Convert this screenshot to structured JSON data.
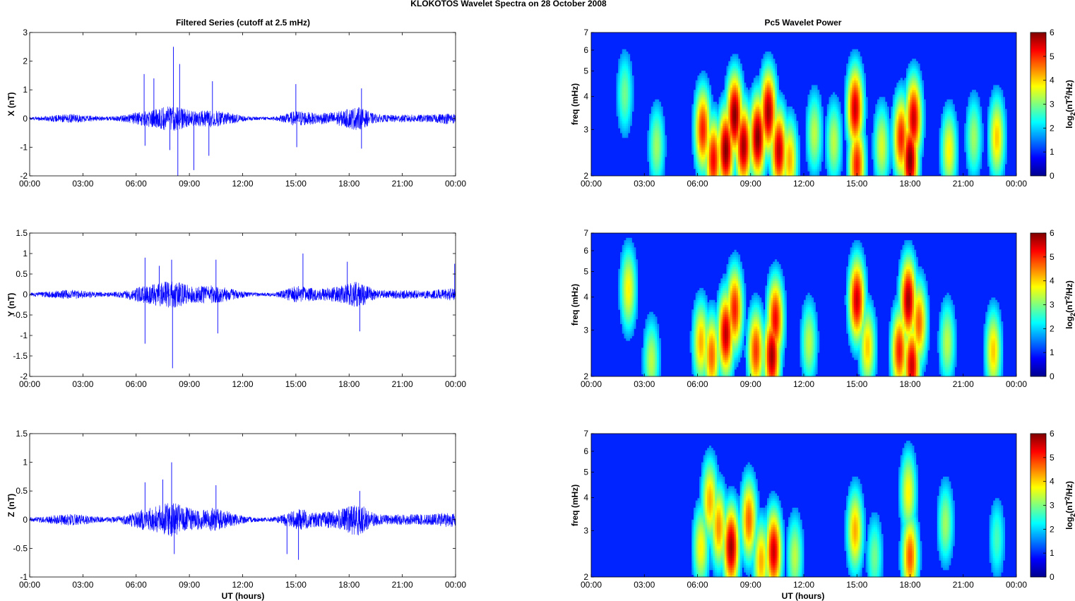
{
  "figure": {
    "suptitle": "KLOKOTOS Wavelet Spectra on 28 October   2008",
    "left_column_title": "Filtered Series (cutoff at 2.5 mHz)",
    "right_column_title": "Pc5 Wavelet Power",
    "xlabel": "UT (hours)"
  },
  "chart_data": [
    {
      "type": "line",
      "name": "X component filtered series",
      "ylabel": "X (nT)",
      "xlim": [
        0,
        24
      ],
      "ylim": [
        -2,
        3
      ],
      "yticks": [
        -2,
        -1,
        0,
        1,
        2,
        3
      ],
      "xtick_labels": [
        "00:00",
        "03:00",
        "06:00",
        "09:00",
        "12:00",
        "15:00",
        "18:00",
        "21:00",
        "00:00"
      ],
      "color": "#0000ff",
      "spikes": [
        {
          "x": 6.45,
          "y": 1.55
        },
        {
          "x": 6.5,
          "y": -0.95
        },
        {
          "x": 7.0,
          "y": 1.4
        },
        {
          "x": 7.9,
          "y": -1.1
        },
        {
          "x": 8.1,
          "y": 2.5
        },
        {
          "x": 8.35,
          "y": -2.0
        },
        {
          "x": 8.45,
          "y": 1.9
        },
        {
          "x": 9.25,
          "y": -1.8
        },
        {
          "x": 10.1,
          "y": -1.3
        },
        {
          "x": 10.3,
          "y": 1.3
        },
        {
          "x": 15.0,
          "y": 1.2
        },
        {
          "x": 15.05,
          "y": -1.0
        },
        {
          "x": 18.7,
          "y": 1.05
        },
        {
          "x": 18.7,
          "y": -1.05
        }
      ]
    },
    {
      "type": "line",
      "name": "Y component filtered series",
      "ylabel": "Y (nT)",
      "xlim": [
        0,
        24
      ],
      "ylim": [
        -2,
        1.5
      ],
      "yticks": [
        -2,
        -1.5,
        -1,
        -0.5,
        0,
        0.5,
        1,
        1.5
      ],
      "xtick_labels": [
        "00:00",
        "03:00",
        "06:00",
        "09:00",
        "12:00",
        "15:00",
        "18:00",
        "21:00",
        "00:00"
      ],
      "color": "#0000ff",
      "spikes": [
        {
          "x": 6.5,
          "y": 0.9
        },
        {
          "x": 6.5,
          "y": -1.2
        },
        {
          "x": 7.3,
          "y": 0.7
        },
        {
          "x": 8.0,
          "y": 0.85
        },
        {
          "x": 8.05,
          "y": -1.8
        },
        {
          "x": 10.5,
          "y": 0.85
        },
        {
          "x": 10.6,
          "y": -0.95
        },
        {
          "x": 15.4,
          "y": 1.0
        },
        {
          "x": 17.9,
          "y": 0.8
        },
        {
          "x": 18.6,
          "y": -0.9
        },
        {
          "x": 23.95,
          "y": 0.75
        }
      ]
    },
    {
      "type": "line",
      "name": "Z component filtered series",
      "ylabel": "Z (nT)",
      "xlim": [
        0,
        24
      ],
      "ylim": [
        -1,
        1.5
      ],
      "yticks": [
        -1,
        -0.5,
        0,
        0.5,
        1,
        1.5
      ],
      "xtick_labels": [
        "00:00",
        "03:00",
        "06:00",
        "09:00",
        "12:00",
        "15:00",
        "18:00",
        "21:00",
        "00:00"
      ],
      "color": "#0000ff",
      "spikes": [
        {
          "x": 6.5,
          "y": 0.65
        },
        {
          "x": 7.5,
          "y": 0.7
        },
        {
          "x": 8.0,
          "y": 1.0
        },
        {
          "x": 8.15,
          "y": -0.6
        },
        {
          "x": 10.5,
          "y": 0.6
        },
        {
          "x": 14.5,
          "y": -0.6
        },
        {
          "x": 15.15,
          "y": -0.7
        },
        {
          "x": 18.6,
          "y": 0.5
        }
      ]
    },
    {
      "type": "heatmap",
      "name": "X wavelet power",
      "ylabel": "freq (mHz)",
      "xlim": [
        0,
        24
      ],
      "ylim_mHz": [
        2,
        7
      ],
      "yscale": "log",
      "yticks": [
        2,
        3,
        4,
        5,
        6,
        7
      ],
      "xtick_labels": [
        "00:00",
        "03:00",
        "06:00",
        "09:00",
        "12:00",
        "15:00",
        "18:00",
        "21:00",
        "00:00"
      ],
      "colorbar": {
        "label": "log2(nT2/Hz)",
        "range": [
          0,
          6
        ],
        "ticks": [
          0,
          1,
          2,
          3,
          4,
          5,
          6
        ]
      },
      "blobs": [
        {
          "t": 1.9,
          "f": 4.1,
          "p": 2.5
        },
        {
          "t": 3.7,
          "f": 2.6,
          "p": 2.8
        },
        {
          "t": 6.3,
          "f": 3.0,
          "p": 5.0
        },
        {
          "t": 6.9,
          "f": 2.3,
          "p": 5.2
        },
        {
          "t": 7.6,
          "f": 2.5,
          "p": 6.0
        },
        {
          "t": 8.1,
          "f": 3.4,
          "p": 6.0
        },
        {
          "t": 8.6,
          "f": 2.6,
          "p": 5.8
        },
        {
          "t": 9.4,
          "f": 2.8,
          "p": 6.0
        },
        {
          "t": 10.0,
          "f": 3.5,
          "p": 5.8
        },
        {
          "t": 10.6,
          "f": 2.5,
          "p": 5.6
        },
        {
          "t": 11.2,
          "f": 2.3,
          "p": 4.0
        },
        {
          "t": 12.6,
          "f": 2.9,
          "p": 3.0
        },
        {
          "t": 13.7,
          "f": 2.7,
          "p": 3.0
        },
        {
          "t": 14.9,
          "f": 3.6,
          "p": 5.5
        },
        {
          "t": 15.0,
          "f": 2.2,
          "p": 5.0
        },
        {
          "t": 16.4,
          "f": 2.6,
          "p": 3.2
        },
        {
          "t": 17.5,
          "f": 2.8,
          "p": 5.0
        },
        {
          "t": 18.0,
          "f": 2.3,
          "p": 6.0
        },
        {
          "t": 18.2,
          "f": 3.3,
          "p": 5.5
        },
        {
          "t": 20.2,
          "f": 2.5,
          "p": 3.5
        },
        {
          "t": 21.6,
          "f": 2.8,
          "p": 2.8
        },
        {
          "t": 22.9,
          "f": 2.8,
          "p": 3.8
        }
      ]
    },
    {
      "type": "heatmap",
      "name": "Y wavelet power",
      "ylabel": "freq (mHz)",
      "xlim": [
        0,
        24
      ],
      "ylim_mHz": [
        2,
        7
      ],
      "yscale": "log",
      "yticks": [
        2,
        3,
        4,
        5,
        6,
        7
      ],
      "xtick_labels": [
        "00:00",
        "03:00",
        "06:00",
        "09:00",
        "12:00",
        "15:00",
        "18:00",
        "21:00",
        "00:00"
      ],
      "colorbar": {
        "label": "log2(nT2/Hz)",
        "range": [
          0,
          6
        ],
        "ticks": [
          0,
          1,
          2,
          3,
          4,
          5,
          6
        ]
      },
      "blobs": [
        {
          "t": 2.1,
          "f": 4.3,
          "p": 3.5
        },
        {
          "t": 3.4,
          "f": 2.3,
          "p": 3.0
        },
        {
          "t": 6.2,
          "f": 2.7,
          "p": 4.0
        },
        {
          "t": 6.8,
          "f": 2.4,
          "p": 4.5
        },
        {
          "t": 7.6,
          "f": 2.9,
          "p": 5.6
        },
        {
          "t": 8.1,
          "f": 3.6,
          "p": 5.0
        },
        {
          "t": 9.3,
          "f": 2.5,
          "p": 4.8
        },
        {
          "t": 10.2,
          "f": 2.4,
          "p": 5.8
        },
        {
          "t": 10.4,
          "f": 3.3,
          "p": 5.2
        },
        {
          "t": 12.3,
          "f": 2.7,
          "p": 3.0
        },
        {
          "t": 15.0,
          "f": 3.9,
          "p": 5.5
        },
        {
          "t": 15.6,
          "f": 2.6,
          "p": 3.8
        },
        {
          "t": 17.4,
          "f": 2.5,
          "p": 5.0
        },
        {
          "t": 17.9,
          "f": 3.9,
          "p": 5.8
        },
        {
          "t": 18.1,
          "f": 2.2,
          "p": 5.5
        },
        {
          "t": 18.5,
          "f": 3.2,
          "p": 4.5
        },
        {
          "t": 20.1,
          "f": 2.7,
          "p": 3.0
        },
        {
          "t": 22.7,
          "f": 2.5,
          "p": 3.8
        }
      ]
    },
    {
      "type": "heatmap",
      "name": "Z wavelet power",
      "ylabel": "freq (mHz)",
      "xlim": [
        0,
        24
      ],
      "ylim_mHz": [
        2,
        7
      ],
      "yscale": "log",
      "yticks": [
        2,
        3,
        4,
        5,
        6,
        7
      ],
      "xtick_labels": [
        "00:00",
        "03:00",
        "06:00",
        "09:00",
        "12:00",
        "15:00",
        "18:00",
        "21:00",
        "00:00"
      ],
      "colorbar": {
        "label": "log2(nT2/Hz)",
        "range": [
          0,
          6
        ],
        "ticks": [
          0,
          1,
          2,
          3,
          4,
          5,
          6
        ]
      },
      "blobs": [
        {
          "t": 6.2,
          "f": 2.6,
          "p": 3.5
        },
        {
          "t": 6.7,
          "f": 3.9,
          "p": 4.0
        },
        {
          "t": 7.2,
          "f": 3.1,
          "p": 4.2
        },
        {
          "t": 7.9,
          "f": 2.6,
          "p": 5.8
        },
        {
          "t": 8.9,
          "f": 3.3,
          "p": 4.5
        },
        {
          "t": 9.6,
          "f": 2.3,
          "p": 4.0
        },
        {
          "t": 10.3,
          "f": 2.5,
          "p": 5.5
        },
        {
          "t": 11.5,
          "f": 2.4,
          "p": 3.0
        },
        {
          "t": 14.9,
          "f": 3.0,
          "p": 4.0
        },
        {
          "t": 16.0,
          "f": 2.4,
          "p": 2.5
        },
        {
          "t": 17.9,
          "f": 4.2,
          "p": 3.5
        },
        {
          "t": 18.0,
          "f": 2.4,
          "p": 4.6
        },
        {
          "t": 20.0,
          "f": 3.2,
          "p": 2.8
        },
        {
          "t": 22.9,
          "f": 2.8,
          "p": 2.2
        }
      ]
    }
  ]
}
